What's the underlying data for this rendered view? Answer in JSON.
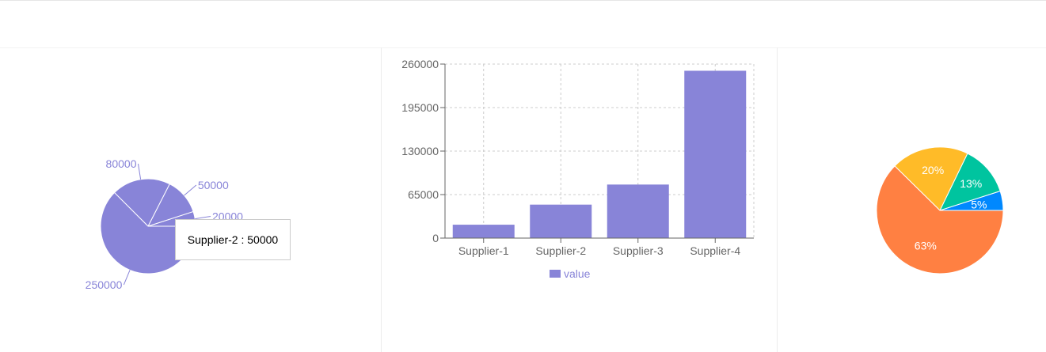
{
  "chart_data": [
    {
      "type": "pie",
      "color": "#8884d8",
      "categories": [
        "Supplier-1",
        "Supplier-2",
        "Supplier-3",
        "Supplier-4"
      ],
      "values": [
        20000,
        50000,
        80000,
        250000
      ],
      "labels": [
        "20000",
        "50000",
        "80000",
        "250000"
      ],
      "tooltip": {
        "name": "Supplier-2",
        "value": "50000",
        "text": "Supplier-2 : 50000"
      }
    },
    {
      "type": "bar",
      "color": "#8884d8",
      "categories": [
        "Supplier-1",
        "Supplier-2",
        "Supplier-3",
        "Supplier-4"
      ],
      "series": [
        {
          "name": "value",
          "values": [
            20000,
            50000,
            80000,
            250000
          ]
        }
      ],
      "yticks": [
        "0",
        "65000",
        "130000",
        "195000",
        "260000"
      ],
      "ylim": [
        0,
        260000
      ],
      "grid": true,
      "legend": "bottom"
    },
    {
      "type": "pie",
      "values": [
        5,
        13,
        20,
        63
      ],
      "labels": [
        "5%",
        "13%",
        "20%",
        "63%"
      ],
      "colors": [
        "#0088fe",
        "#00c49f",
        "#ffbb28",
        "#ff8042"
      ]
    }
  ]
}
